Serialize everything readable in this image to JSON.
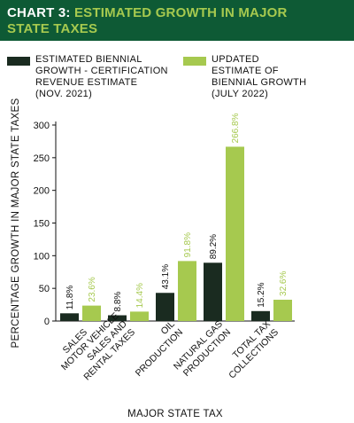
{
  "header": {
    "prefix": "CHART 3: ",
    "title_line1": "ESTIMATED GROWTH IN MAJOR",
    "title_line2": "STATE TAXES"
  },
  "legend": [
    {
      "lines": [
        "ESTIMATED BIENNIAL",
        "GROWTH - CERTIFICATION",
        "REVENUE ESTIMATE",
        "(NOV. 2021)"
      ]
    },
    {
      "lines": [
        "UPDATED",
        "ESTIMATE OF",
        "BIENNIAL GROWTH",
        "(JULY 2022)"
      ]
    }
  ],
  "colors": {
    "header_bg": "#0e5a35",
    "accent": "#a6c94f",
    "series_1": "#1a2b20",
    "series_2": "#a6c94f"
  },
  "chart_data": {
    "type": "bar",
    "title": "CHART 3: ESTIMATED GROWTH IN MAJOR STATE TAXES",
    "xlabel": "MAJOR STATE TAX",
    "ylabel": "PERCENTAGE GROWTH IN MAJOR STATE TAXES",
    "ylim": [
      0,
      300
    ],
    "yticks": [
      0,
      50,
      100,
      150,
      200,
      250,
      300
    ],
    "categories": [
      [
        "SALES"
      ],
      [
        "MOTOR VEHICLE",
        "SALES AND",
        "RENTAL TAXES"
      ],
      [
        "OIL",
        "PRODUCTION"
      ],
      [
        "NATURAL GAS",
        "PRODUCTION"
      ],
      [
        "TOTAL TAX",
        "COLLECTIONS"
      ]
    ],
    "series": [
      {
        "name": "ESTIMATED BIENNIAL GROWTH - CERTIFICATION REVENUE ESTIMATE (NOV. 2021)",
        "values": [
          11.8,
          8.8,
          43.1,
          89.2,
          15.2
        ],
        "labels": [
          "11.8%",
          "8.8%",
          "43.1%",
          "89.2%",
          "15.2%"
        ]
      },
      {
        "name": "UPDATED ESTIMATE OF BIENNIAL GROWTH (JULY 2022)",
        "values": [
          23.6,
          14.4,
          91.8,
          266.8,
          32.6
        ],
        "labels": [
          "23.6%",
          "14.4%",
          "91.8%",
          "266.8%",
          "32.6%"
        ]
      }
    ],
    "legend_position": "top",
    "grid": false
  }
}
